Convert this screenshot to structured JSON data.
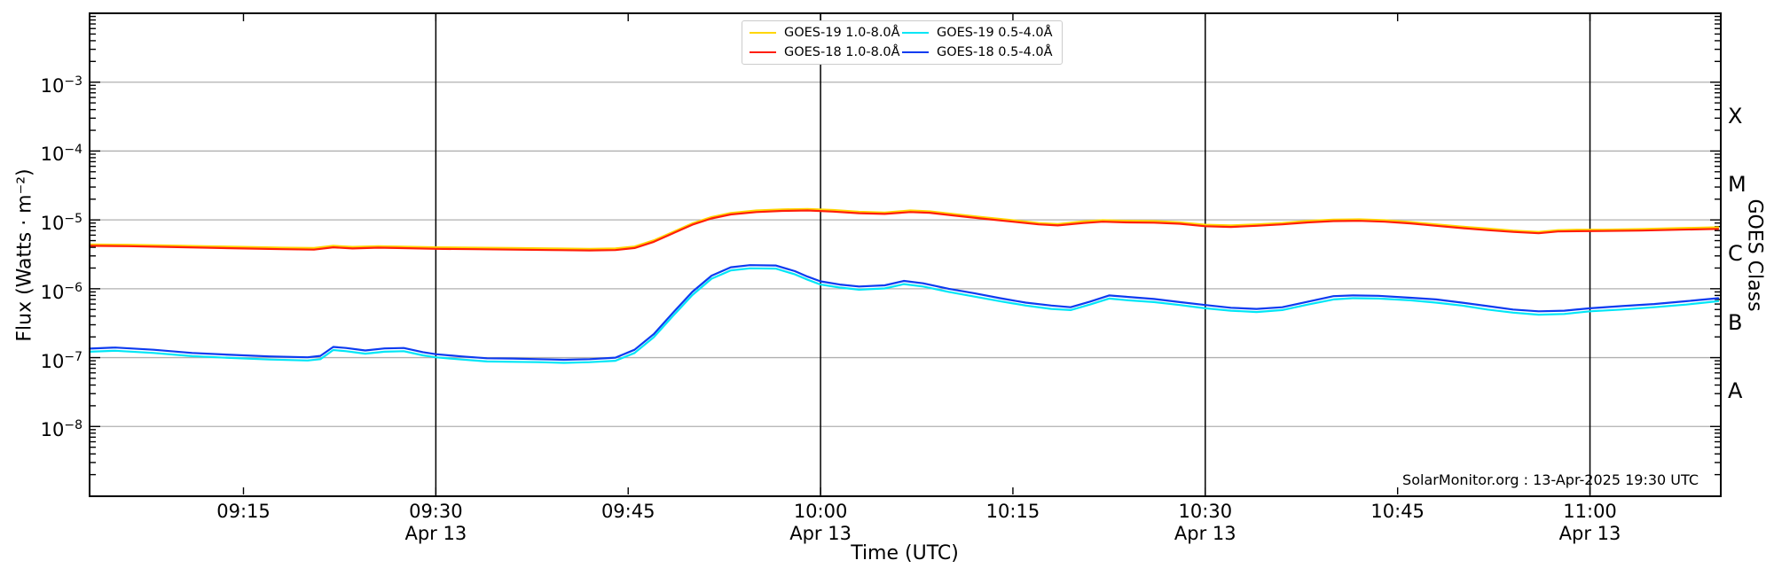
{
  "annotation": "SolarMonitor.org : 13-Apr-2025 19:30 UTC",
  "chart_data": {
    "type": "line",
    "title": "",
    "xlabel": "Time (UTC)",
    "ylabel": "Flux (Watts · m⁻²)",
    "ylabel_right": "GOES Class",
    "x_axis": {
      "unit": "minutes after 09:00 UTC",
      "range": [
        3.0,
        130.2
      ],
      "date": "Apr 13"
    },
    "y_axis": {
      "scale": "log",
      "range_exponents": [
        -9,
        -2
      ],
      "grid": "horizontal gray lines at each labeled decade"
    },
    "x_ticks": [
      {
        "t": 15,
        "label": "09:15"
      },
      {
        "t": 30,
        "label": "09:30",
        "sub": "Apr 13"
      },
      {
        "t": 45,
        "label": "09:45"
      },
      {
        "t": 60,
        "label": "10:00",
        "sub": "Apr 13"
      },
      {
        "t": 75,
        "label": "10:15"
      },
      {
        "t": 90,
        "label": "10:30",
        "sub": "Apr 13"
      },
      {
        "t": 105,
        "label": "10:45"
      },
      {
        "t": 120,
        "label": "11:00",
        "sub": "Apr 13"
      }
    ],
    "y_ticks": [
      {
        "base": "10",
        "exp": "−3",
        "value": 0.001
      },
      {
        "base": "10",
        "exp": "−4",
        "value": 0.0001
      },
      {
        "base": "10",
        "exp": "−5",
        "value": 1e-05
      },
      {
        "base": "10",
        "exp": "−6",
        "value": 1e-06
      },
      {
        "base": "10",
        "exp": "−7",
        "value": 1e-07
      },
      {
        "base": "10",
        "exp": "−8",
        "value": 1e-08
      }
    ],
    "goes_classes": [
      {
        "label": "X",
        "value": 0.000316
      },
      {
        "label": "M",
        "value": 3.16e-05
      },
      {
        "label": "C",
        "value": 3.16e-06
      },
      {
        "label": "B",
        "value": 3.16e-07
      },
      {
        "label": "A",
        "value": 3.16e-08
      }
    ],
    "vlines_t": [
      30,
      60,
      90,
      120
    ],
    "legend": {
      "position": "top-center",
      "items": [
        {
          "label": "GOES-19 1.0-8.0Å",
          "color": "#ffd600"
        },
        {
          "label": "GOES-18 1.0-8.0Å",
          "color": "#ff1e0a"
        },
        {
          "label": "GOES-19 0.5-4.0Å",
          "color": "#00e6f6"
        },
        {
          "label": "GOES-18 0.5-4.0Å",
          "color": "#0c3bf0"
        }
      ]
    },
    "series": [
      {
        "name": "GOES-19 1.0-8.0Å",
        "color": "#ffd600",
        "width": 2.2,
        "points": [
          [
            3,
            4.4e-06
          ],
          [
            6,
            4.35e-06
          ],
          [
            9,
            4.25e-06
          ],
          [
            12,
            4.15e-06
          ],
          [
            15,
            4.05e-06
          ],
          [
            18,
            3.95e-06
          ],
          [
            20.5,
            3.9e-06
          ],
          [
            22,
            4.2e-06
          ],
          [
            23.5,
            4.05e-06
          ],
          [
            25.5,
            4.15e-06
          ],
          [
            27,
            4.1e-06
          ],
          [
            30,
            4e-06
          ],
          [
            33,
            3.95e-06
          ],
          [
            36,
            3.9e-06
          ],
          [
            39,
            3.85e-06
          ],
          [
            42,
            3.8e-06
          ],
          [
            44,
            3.85e-06
          ],
          [
            45.5,
            4.1e-06
          ],
          [
            47,
            5.05e-06
          ],
          [
            48.5,
            6.7e-06
          ],
          [
            50,
            8.9e-06
          ],
          [
            51.5,
            1.1e-05
          ],
          [
            53,
            1.26e-05
          ],
          [
            55,
            1.37e-05
          ],
          [
            57,
            1.42e-05
          ],
          [
            59,
            1.44e-05
          ],
          [
            61,
            1.39e-05
          ],
          [
            63,
            1.31e-05
          ],
          [
            65,
            1.28e-05
          ],
          [
            67,
            1.37e-05
          ],
          [
            68.5,
            1.33e-05
          ],
          [
            70.5,
            1.21e-05
          ],
          [
            72.5,
            1.1e-05
          ],
          [
            75,
            9.9e-06
          ],
          [
            77,
            9e-06
          ],
          [
            78.5,
            8.7e-06
          ],
          [
            80.5,
            9.5e-06
          ],
          [
            82,
            9.9e-06
          ],
          [
            84,
            9.7e-06
          ],
          [
            86,
            9.6e-06
          ],
          [
            88,
            9.2e-06
          ],
          [
            90,
            8.5e-06
          ],
          [
            92,
            8.3e-06
          ],
          [
            94,
            8.6e-06
          ],
          [
            96,
            9e-06
          ],
          [
            98,
            9.7e-06
          ],
          [
            100,
            1.01e-05
          ],
          [
            102,
            1.02e-05
          ],
          [
            104,
            9.9e-06
          ],
          [
            106,
            9.3e-06
          ],
          [
            108,
            8.6e-06
          ],
          [
            110,
            8e-06
          ],
          [
            112,
            7.5e-06
          ],
          [
            114,
            7e-06
          ],
          [
            116,
            6.7e-06
          ],
          [
            117.5,
            7.1e-06
          ],
          [
            119,
            7.2e-06
          ],
          [
            121,
            7.2e-06
          ],
          [
            124,
            7.35e-06
          ],
          [
            127,
            7.6e-06
          ],
          [
            130,
            7.8e-06
          ]
        ]
      },
      {
        "name": "GOES-19 0.5-4.0Å",
        "color": "#00e6f6",
        "width": 2.2,
        "points": [
          [
            3,
            1.22e-07
          ],
          [
            5,
            1.26e-07
          ],
          [
            8,
            1.17e-07
          ],
          [
            11,
            1.05e-07
          ],
          [
            14,
            9.9e-08
          ],
          [
            17,
            9.4e-08
          ],
          [
            20,
            9.1e-08
          ],
          [
            21,
            9.5e-08
          ],
          [
            22,
            1.29e-07
          ],
          [
            23,
            1.24e-07
          ],
          [
            24.5,
            1.14e-07
          ],
          [
            26,
            1.22e-07
          ],
          [
            27.5,
            1.24e-07
          ],
          [
            29,
            1.08e-07
          ],
          [
            30,
            1.01e-07
          ],
          [
            32,
            9.4e-08
          ],
          [
            34,
            8.8e-08
          ],
          [
            36,
            8.7e-08
          ],
          [
            38,
            8.6e-08
          ],
          [
            40,
            8.4e-08
          ],
          [
            42,
            8.6e-08
          ],
          [
            44,
            9e-08
          ],
          [
            45.5,
            1.17e-07
          ],
          [
            47,
            1.98e-07
          ],
          [
            48.5,
            4.05e-07
          ],
          [
            50,
            8.1e-07
          ],
          [
            51.5,
            1.4e-06
          ],
          [
            53,
            1.85e-06
          ],
          [
            54.5,
            1.98e-06
          ],
          [
            56.5,
            1.96e-06
          ],
          [
            58,
            1.62e-06
          ],
          [
            59,
            1.35e-06
          ],
          [
            60,
            1.15e-06
          ],
          [
            61.5,
            1.04e-06
          ],
          [
            63,
            9.7e-07
          ],
          [
            65,
            1.01e-06
          ],
          [
            66.5,
            1.17e-06
          ],
          [
            68,
            1.08e-06
          ],
          [
            70,
            9e-07
          ],
          [
            72,
            7.7e-07
          ],
          [
            74,
            6.6e-07
          ],
          [
            76,
            5.7e-07
          ],
          [
            78,
            5.1e-07
          ],
          [
            79.5,
            4.9e-07
          ],
          [
            81,
            5.9e-07
          ],
          [
            82.5,
            7.2e-07
          ],
          [
            84,
            6.8e-07
          ],
          [
            86,
            6.4e-07
          ],
          [
            88,
            5.8e-07
          ],
          [
            90,
            5.2e-07
          ],
          [
            92,
            4.8e-07
          ],
          [
            94,
            4.6e-07
          ],
          [
            96,
            4.9e-07
          ],
          [
            98,
            5.9e-07
          ],
          [
            100,
            7e-07
          ],
          [
            101.5,
            7.3e-07
          ],
          [
            103.5,
            7.2e-07
          ],
          [
            106,
            6.8e-07
          ],
          [
            108,
            6.3e-07
          ],
          [
            110,
            5.7e-07
          ],
          [
            112,
            5e-07
          ],
          [
            114,
            4.5e-07
          ],
          [
            116,
            4.2e-07
          ],
          [
            118,
            4.3e-07
          ],
          [
            120,
            4.7e-07
          ],
          [
            122.5,
            5e-07
          ],
          [
            125,
            5.4e-07
          ],
          [
            127.5,
            5.9e-07
          ],
          [
            130,
            6.6e-07
          ]
        ]
      },
      {
        "name": "GOES-18 1.0-8.0Å",
        "color": "#ff1e0a",
        "width": 2.2,
        "points": [
          [
            3,
            4.2e-06
          ],
          [
            6,
            4.15e-06
          ],
          [
            9,
            4.05e-06
          ],
          [
            12,
            3.95e-06
          ],
          [
            15,
            3.85e-06
          ],
          [
            18,
            3.75e-06
          ],
          [
            20.5,
            3.7e-06
          ],
          [
            22,
            4e-06
          ],
          [
            23.5,
            3.85e-06
          ],
          [
            25.5,
            3.95e-06
          ],
          [
            27,
            3.9e-06
          ],
          [
            30,
            3.8e-06
          ],
          [
            33,
            3.75e-06
          ],
          [
            36,
            3.7e-06
          ],
          [
            39,
            3.65e-06
          ],
          [
            42,
            3.6e-06
          ],
          [
            44,
            3.65e-06
          ],
          [
            45.5,
            3.9e-06
          ],
          [
            47,
            4.8e-06
          ],
          [
            48.5,
            6.4e-06
          ],
          [
            50,
            8.5e-06
          ],
          [
            51.5,
            1.05e-05
          ],
          [
            53,
            1.2e-05
          ],
          [
            55,
            1.3e-05
          ],
          [
            57,
            1.35e-05
          ],
          [
            59,
            1.37e-05
          ],
          [
            61,
            1.32e-05
          ],
          [
            63,
            1.25e-05
          ],
          [
            65,
            1.22e-05
          ],
          [
            67,
            1.3e-05
          ],
          [
            68.5,
            1.27e-05
          ],
          [
            70.5,
            1.15e-05
          ],
          [
            72.5,
            1.05e-05
          ],
          [
            75,
            9.4e-06
          ],
          [
            77,
            8.6e-06
          ],
          [
            78.5,
            8.3e-06
          ],
          [
            80.5,
            9e-06
          ],
          [
            82,
            9.4e-06
          ],
          [
            84,
            9.2e-06
          ],
          [
            86,
            9.1e-06
          ],
          [
            88,
            8.8e-06
          ],
          [
            90,
            8.1e-06
          ],
          [
            92,
            7.9e-06
          ],
          [
            94,
            8.2e-06
          ],
          [
            96,
            8.6e-06
          ],
          [
            98,
            9.2e-06
          ],
          [
            100,
            9.6e-06
          ],
          [
            102,
            9.7e-06
          ],
          [
            104,
            9.4e-06
          ],
          [
            106,
            8.9e-06
          ],
          [
            108,
            8.2e-06
          ],
          [
            110,
            7.6e-06
          ],
          [
            112,
            7.1e-06
          ],
          [
            114,
            6.7e-06
          ],
          [
            116,
            6.4e-06
          ],
          [
            117.5,
            6.8e-06
          ],
          [
            119,
            6.85e-06
          ],
          [
            121,
            6.9e-06
          ],
          [
            124,
            7e-06
          ],
          [
            127,
            7.2e-06
          ],
          [
            130,
            7.4e-06
          ]
        ]
      },
      {
        "name": "GOES-18 0.5-4.0Å",
        "color": "#0c3bf0",
        "width": 2.2,
        "points": [
          [
            3,
            1.35e-07
          ],
          [
            5,
            1.4e-07
          ],
          [
            8,
            1.3e-07
          ],
          [
            11,
            1.17e-07
          ],
          [
            14,
            1.1e-07
          ],
          [
            17,
            1.04e-07
          ],
          [
            20,
            1.01e-07
          ],
          [
            21,
            1.06e-07
          ],
          [
            22,
            1.43e-07
          ],
          [
            23,
            1.38e-07
          ],
          [
            24.5,
            1.27e-07
          ],
          [
            26,
            1.36e-07
          ],
          [
            27.5,
            1.38e-07
          ],
          [
            29,
            1.2e-07
          ],
          [
            30,
            1.12e-07
          ],
          [
            32,
            1.04e-07
          ],
          [
            34,
            9.8e-08
          ],
          [
            36,
            9.7e-08
          ],
          [
            38,
            9.5e-08
          ],
          [
            40,
            9.3e-08
          ],
          [
            42,
            9.5e-08
          ],
          [
            44,
            1e-07
          ],
          [
            45.5,
            1.3e-07
          ],
          [
            47,
            2.2e-07
          ],
          [
            48.5,
            4.5e-07
          ],
          [
            50,
            9e-07
          ],
          [
            51.5,
            1.55e-06
          ],
          [
            53,
            2.05e-06
          ],
          [
            54.5,
            2.2e-06
          ],
          [
            56.5,
            2.18e-06
          ],
          [
            58,
            1.8e-06
          ],
          [
            59,
            1.5e-06
          ],
          [
            60,
            1.28e-06
          ],
          [
            61.5,
            1.15e-06
          ],
          [
            63,
            1.08e-06
          ],
          [
            65,
            1.12e-06
          ],
          [
            66.5,
            1.3e-06
          ],
          [
            68,
            1.2e-06
          ],
          [
            70,
            1e-06
          ],
          [
            72,
            8.6e-07
          ],
          [
            74,
            7.3e-07
          ],
          [
            76,
            6.3e-07
          ],
          [
            78,
            5.7e-07
          ],
          [
            79.5,
            5.4e-07
          ],
          [
            81,
            6.5e-07
          ],
          [
            82.5,
            8e-07
          ],
          [
            84,
            7.6e-07
          ],
          [
            86,
            7.1e-07
          ],
          [
            88,
            6.4e-07
          ],
          [
            90,
            5.8e-07
          ],
          [
            92,
            5.3e-07
          ],
          [
            94,
            5.1e-07
          ],
          [
            96,
            5.4e-07
          ],
          [
            98,
            6.5e-07
          ],
          [
            100,
            7.8e-07
          ],
          [
            101.5,
            8e-07
          ],
          [
            103.5,
            7.9e-07
          ],
          [
            106,
            7.4e-07
          ],
          [
            108,
            7e-07
          ],
          [
            110,
            6.3e-07
          ],
          [
            112,
            5.6e-07
          ],
          [
            114,
            5e-07
          ],
          [
            116,
            4.7e-07
          ],
          [
            118,
            4.8e-07
          ],
          [
            120,
            5.2e-07
          ],
          [
            122.5,
            5.6e-07
          ],
          [
            125,
            6e-07
          ],
          [
            127.5,
            6.6e-07
          ],
          [
            130,
            7.3e-07
          ]
        ]
      }
    ],
    "colors": {
      "grid": "#b0b0b0",
      "vline": "#000000",
      "spine": "#000000",
      "background": "#ffffff"
    }
  }
}
